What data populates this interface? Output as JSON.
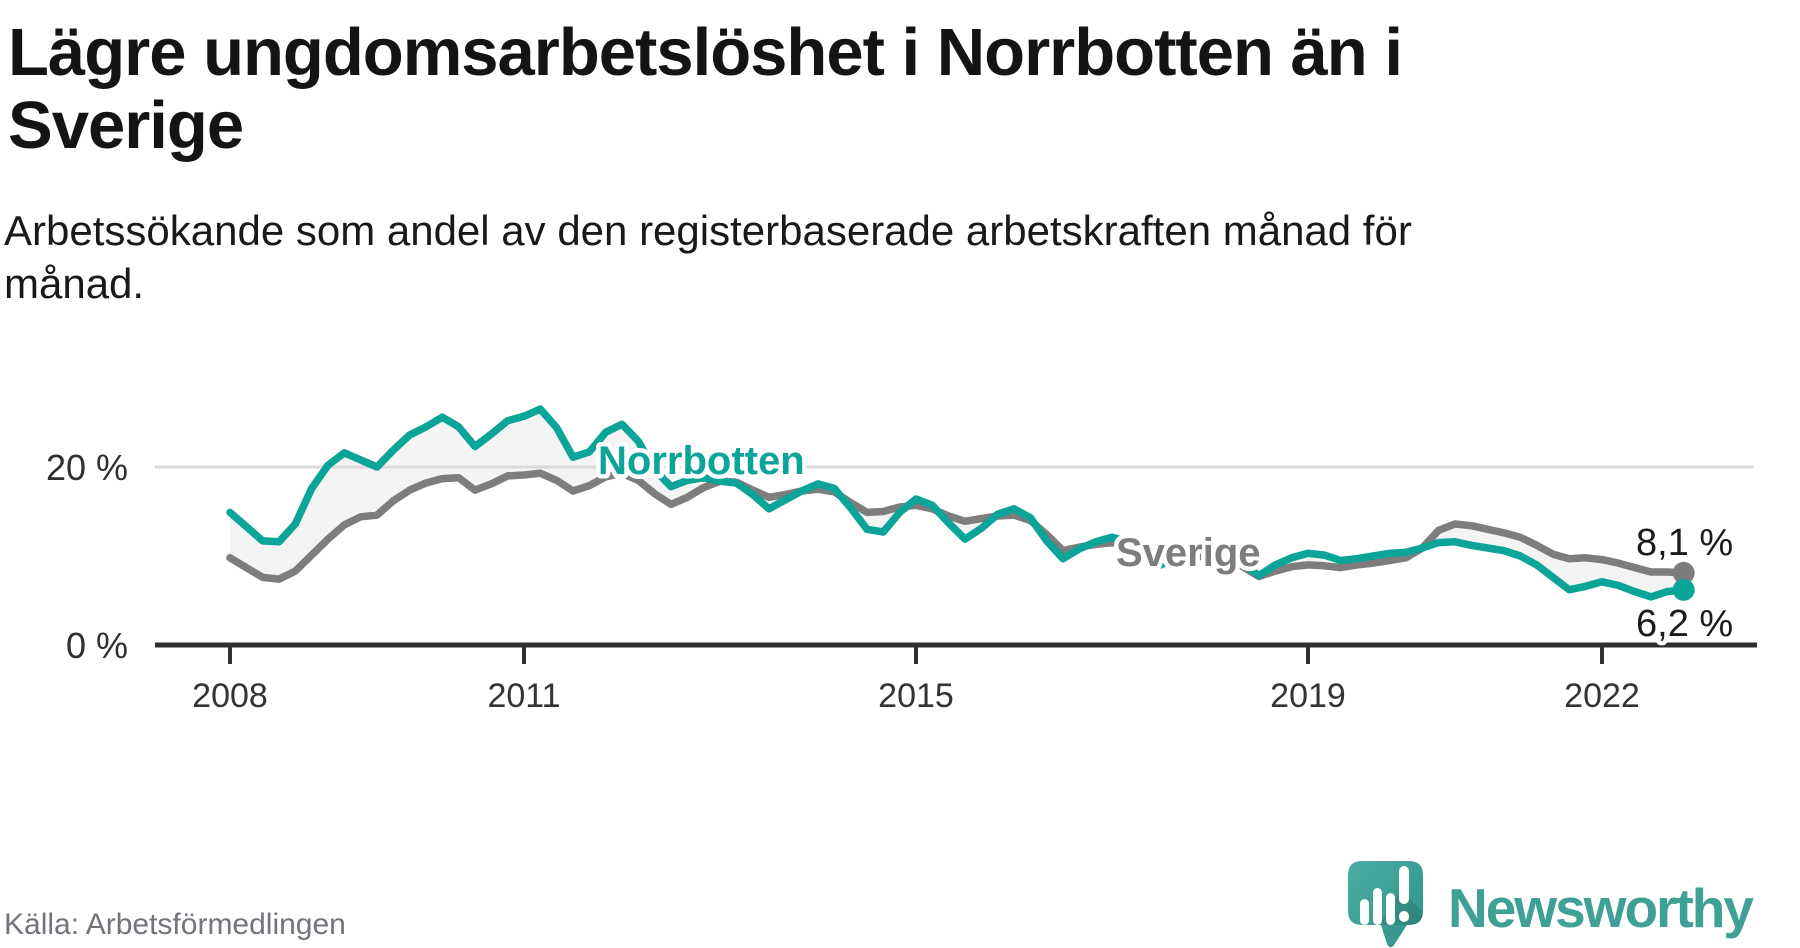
{
  "header": {
    "title": "Lägre ungdomsarbetslöshet i Norrbotten än i Sverige",
    "title_lines": [
      "Lägre ungdomsarbetslöshet i Norrbotten än i",
      "Sverige"
    ],
    "subtitle": "Arbetssökande som andel av den registerbaserade arbetskraften månad för månad.",
    "subtitle_lines": [
      "Arbetssökande som andel av den registerbaserade arbetskraften månad för",
      "månad."
    ]
  },
  "footer": {
    "source": "Källa: Arbetsförmedlingen",
    "brand": "Newsworthy",
    "brand_color": "#3fa096"
  },
  "chart_data": {
    "type": "line",
    "title": "",
    "xlabel": "",
    "ylabel": "",
    "x_unit": "decimal_year",
    "x_start": 2008.0,
    "x_step_months": 2,
    "x_end_label": "2022-11",
    "xlim": [
      2008,
      2022.95
    ],
    "ylim": [
      0,
      27.5
    ],
    "grid": {
      "y_values": [
        20
      ],
      "color": "#dadada"
    },
    "x_ticks": [
      2008,
      2011,
      2015,
      2019,
      2022
    ],
    "y_axis_labels": [
      {
        "value": 20,
        "label": "20 %"
      },
      {
        "value": 0,
        "label": "0 %"
      }
    ],
    "legend_position": "inline-labels-on-lines",
    "area_between_fill": "#f4f4f4",
    "axis_color": "#2f2f2f",
    "end_label_color": "#1b1b1b",
    "series": [
      {
        "name": "Norrbotten",
        "color": "#0aa499",
        "end_value": 6.2,
        "end_label": "6,2 %",
        "values": [
          14.9,
          13.3,
          11.7,
          11.6,
          13.6,
          17.6,
          20.2,
          21.6,
          20.8,
          20.0,
          21.9,
          23.6,
          24.5,
          25.6,
          24.5,
          22.3,
          23.7,
          25.2,
          25.7,
          26.5,
          24.4,
          21.1,
          21.7,
          23.9,
          24.8,
          22.9,
          19.7,
          17.8,
          18.5,
          18.8,
          18.4,
          18.2,
          16.9,
          15.3,
          16.3,
          17.3,
          18.1,
          17.6,
          15.4,
          13.0,
          12.7,
          14.9,
          16.4,
          15.7,
          13.7,
          11.9,
          13.1,
          14.7,
          15.3,
          14.3,
          11.7,
          9.7,
          10.8,
          11.6,
          12.1,
          11.6,
          10.1,
          9.0,
          9.9,
          10.5,
          10.6,
          10.2,
          9.1,
          7.8,
          9.0,
          9.8,
          10.3,
          10.1,
          9.5,
          9.7,
          10.0,
          10.3,
          10.4,
          10.9,
          11.5,
          11.6,
          11.2,
          10.9,
          10.6,
          10.0,
          9.0,
          7.6,
          6.2,
          6.6,
          7.1,
          6.7,
          6.0,
          5.4,
          6.0,
          6.2
        ]
      },
      {
        "name": "Sverige",
        "color": "#7d7d7d",
        "end_value": 8.1,
        "end_label": "8,1 %",
        "values": [
          9.8,
          8.7,
          7.6,
          7.4,
          8.3,
          10.1,
          11.9,
          13.5,
          14.4,
          14.6,
          16.2,
          17.4,
          18.2,
          18.7,
          18.8,
          17.4,
          18.1,
          19.0,
          19.1,
          19.3,
          18.5,
          17.3,
          17.9,
          18.9,
          19.3,
          18.5,
          17.0,
          15.8,
          16.6,
          17.7,
          18.4,
          18.3,
          17.4,
          16.6,
          16.9,
          17.3,
          17.5,
          17.2,
          16.0,
          14.9,
          15.0,
          15.5,
          15.7,
          15.3,
          14.5,
          13.9,
          14.2,
          14.5,
          14.6,
          14.0,
          12.4,
          10.6,
          11.0,
          11.3,
          11.5,
          11.1,
          10.2,
          9.3,
          9.6,
          9.9,
          10.0,
          9.7,
          8.8,
          7.7,
          8.3,
          8.8,
          9.0,
          8.9,
          8.7,
          9.0,
          9.2,
          9.5,
          9.8,
          10.9,
          12.9,
          13.6,
          13.4,
          13.0,
          12.6,
          12.1,
          11.2,
          10.2,
          9.7,
          9.8,
          9.6,
          9.2,
          8.7,
          8.2,
          8.2,
          8.1
        ]
      }
    ]
  }
}
